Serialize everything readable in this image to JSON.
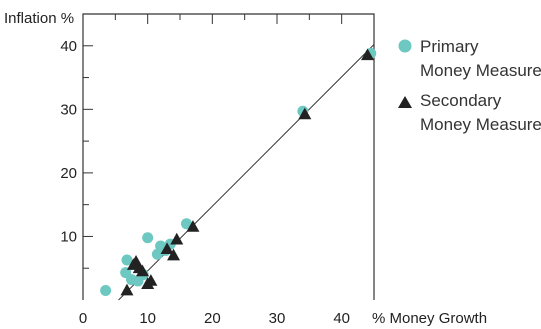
{
  "chart_data": {
    "type": "scatter",
    "title": "",
    "xlabel": "% Money Growth",
    "ylabel": "Inflation %",
    "xlim": [
      0,
      45
    ],
    "ylim": [
      0,
      45
    ],
    "x_ticks": [
      0,
      10,
      20,
      30,
      40
    ],
    "y_ticks": [
      10,
      20,
      30,
      40
    ],
    "grid": false,
    "legend_position": "right",
    "series": [
      {
        "name": "Primary Money Measure",
        "marker": "circle",
        "color": "#6cc8c1",
        "points": [
          {
            "x": 3.5,
            "y": 1.5
          },
          {
            "x": 6.8,
            "y": 6.3
          },
          {
            "x": 6.6,
            "y": 4.3
          },
          {
            "x": 7.5,
            "y": 3.2
          },
          {
            "x": 8.5,
            "y": 3.0
          },
          {
            "x": 9.3,
            "y": 4.0
          },
          {
            "x": 10.0,
            "y": 9.8
          },
          {
            "x": 11.5,
            "y": 7.2
          },
          {
            "x": 12.0,
            "y": 8.5
          },
          {
            "x": 12.8,
            "y": 7.8
          },
          {
            "x": 13.5,
            "y": 8.8
          },
          {
            "x": 16.0,
            "y": 12.0
          },
          {
            "x": 34.0,
            "y": 29.7
          },
          {
            "x": 44.5,
            "y": 38.8
          }
        ]
      },
      {
        "name": "Secondary Money Measure",
        "marker": "triangle",
        "color": "#222222",
        "points": [
          {
            "x": 6.8,
            "y": 1.5
          },
          {
            "x": 7.8,
            "y": 5.5
          },
          {
            "x": 8.2,
            "y": 6.0
          },
          {
            "x": 8.7,
            "y": 5.0
          },
          {
            "x": 9.2,
            "y": 4.5
          },
          {
            "x": 10.0,
            "y": 2.5
          },
          {
            "x": 10.5,
            "y": 3.0
          },
          {
            "x": 13.0,
            "y": 8.0
          },
          {
            "x": 14.0,
            "y": 7.0
          },
          {
            "x": 14.5,
            "y": 9.5
          },
          {
            "x": 17.0,
            "y": 11.5
          },
          {
            "x": 34.3,
            "y": 29.2
          },
          {
            "x": 44.0,
            "y": 38.5
          }
        ]
      }
    ],
    "trend_line": {
      "from": {
        "x": 5.5,
        "y": 0
      },
      "to": {
        "x": 45,
        "y": 40.2
      }
    }
  }
}
